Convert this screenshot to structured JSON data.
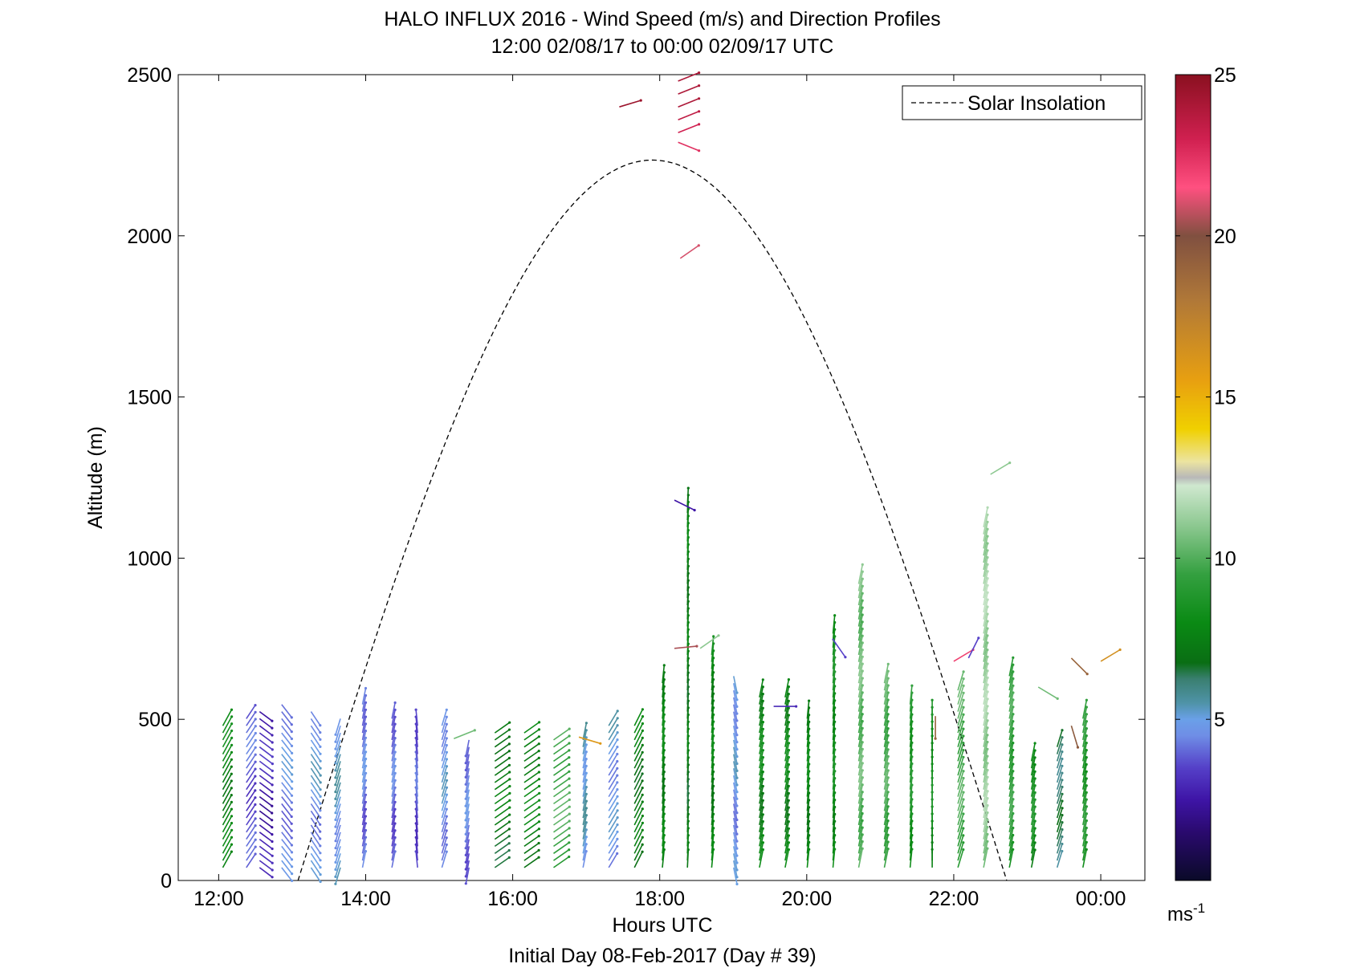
{
  "chart_data": {
    "type": "scatter",
    "title": "HALO INFLUX 2016 - Wind Speed (m/s) and Direction Profiles",
    "subtitle": "12:00 02/08/17 to 00:00 02/09/17  UTC",
    "xlabel": "Hours UTC",
    "footer": "Initial Day 08-Feb-2017 (Day # 39)",
    "ylabel": "Altitude (m)",
    "xlim": [
      11.45,
      24.6
    ],
    "ylim": [
      0,
      2500
    ],
    "xticks": [
      12,
      14,
      16,
      18,
      20,
      22,
      24
    ],
    "xtick_labels": [
      "12:00",
      "14:00",
      "16:00",
      "18:00",
      "20:00",
      "22:00",
      "00:00"
    ],
    "yticks": [
      0,
      500,
      1000,
      1500,
      2000,
      2500
    ],
    "ytick_labels": [
      "0",
      "500",
      "1000",
      "1500",
      "2000",
      "2500"
    ],
    "legend": {
      "label": "Solar Insolation",
      "position": "top-right",
      "style": "dashed"
    },
    "colorbar": {
      "min": 0,
      "max": 25,
      "ticks": [
        5,
        10,
        15,
        20,
        25
      ],
      "tick_labels": [
        "5",
        "10",
        "15",
        "20",
        "25"
      ],
      "unit_label": "ms",
      "unit_exponent": "-1"
    },
    "solar_insolation": {
      "start_hour": 13.08,
      "peak_hour": 17.9,
      "end_hour": 22.72,
      "peak_altitude": 2235
    },
    "profiles": [
      {
        "hour": 12.1,
        "base_speed": 7.5,
        "dir_dx": 0.55,
        "dir_dy": 1.0,
        "top": 500
      },
      {
        "hour": 12.42,
        "base_speed": 3.5,
        "dir_dx": 0.6,
        "dir_dy": 0.9,
        "top": 520
      },
      {
        "hour": 12.6,
        "base_speed": 2.5,
        "dir_dx": 0.8,
        "dir_dy": -0.6,
        "top": 540
      },
      {
        "hour": 12.9,
        "base_speed": 4.2,
        "dir_dx": 0.7,
        "dir_dy": -0.9,
        "top": 550
      },
      {
        "hour": 13.3,
        "base_speed": 4.5,
        "dir_dx": 0.6,
        "dir_dy": -0.9,
        "top": 540
      },
      {
        "hour": 13.7,
        "base_speed": 4.8,
        "dir_dx": -0.3,
        "dir_dy": -1.0,
        "top": 520
      },
      {
        "hour": 14.0,
        "base_speed": 4.0,
        "dir_dx": 0.2,
        "dir_dy": 1.0,
        "top": 550
      },
      {
        "hour": 14.4,
        "base_speed": 3.8,
        "dir_dx": 0.2,
        "dir_dy": 1.0,
        "top": 520
      },
      {
        "hour": 14.75,
        "base_speed": 3.5,
        "dir_dx": -0.1,
        "dir_dy": 1.0,
        "top": 480
      },
      {
        "hour": 15.08,
        "base_speed": 4.5,
        "dir_dx": 0.3,
        "dir_dy": 1.0,
        "top": 490
      },
      {
        "hour": 15.45,
        "base_speed": 4.0,
        "dir_dx": -0.2,
        "dir_dy": -1.0,
        "top": 440
      },
      {
        "hour": 15.8,
        "base_speed": 7.0,
        "dir_dx": 1.0,
        "dir_dy": 0.7,
        "top": 460
      },
      {
        "hour": 16.2,
        "base_speed": 7.5,
        "dir_dx": 1.0,
        "dir_dy": 0.7,
        "top": 460
      },
      {
        "hour": 16.6,
        "base_speed": 9.5,
        "dir_dx": 1.0,
        "dir_dy": 0.7,
        "top": 440
      },
      {
        "hour": 17.0,
        "base_speed": 5.0,
        "dir_dx": 0.2,
        "dir_dy": 1.0,
        "top": 440
      },
      {
        "hour": 17.35,
        "base_speed": 4.5,
        "dir_dx": 0.6,
        "dir_dy": 1.0,
        "top": 490
      },
      {
        "hour": 17.7,
        "base_speed": 7.0,
        "dir_dx": 0.5,
        "dir_dy": 1.0,
        "top": 480
      },
      {
        "hour": 18.08,
        "base_speed": 7.5,
        "dir_dx": 0.1,
        "dir_dy": 1.0,
        "top": 620
      },
      {
        "hour": 18.42,
        "base_speed": 7.0,
        "dir_dx": 0.05,
        "dir_dy": 1.0,
        "top": 1170
      },
      {
        "hour": 18.75,
        "base_speed": 7.5,
        "dir_dx": 0.1,
        "dir_dy": 1.0,
        "top": 720
      },
      {
        "hour": 19.05,
        "base_speed": 4.5,
        "dir_dx": 0.2,
        "dir_dy": -1.0,
        "top": 650
      },
      {
        "hour": 19.4,
        "base_speed": 7.5,
        "dir_dx": 0.2,
        "dir_dy": 1.0,
        "top": 570
      },
      {
        "hour": 19.75,
        "base_speed": 7.5,
        "dir_dx": 0.2,
        "dir_dy": 1.0,
        "top": 570
      },
      {
        "hour": 20.05,
        "base_speed": 7.5,
        "dir_dx": 0.1,
        "dir_dy": 1.0,
        "top": 520
      },
      {
        "hour": 20.4,
        "base_speed": 8.0,
        "dir_dx": 0.1,
        "dir_dy": 1.0,
        "top": 780
      },
      {
        "hour": 20.75,
        "base_speed": 10.0,
        "dir_dx": 0.2,
        "dir_dy": 1.0,
        "top": 940
      },
      {
        "hour": 21.1,
        "base_speed": 9.5,
        "dir_dx": 0.2,
        "dir_dy": 1.0,
        "top": 620
      },
      {
        "hour": 21.45,
        "base_speed": 8.5,
        "dir_dx": 0.1,
        "dir_dy": 1.0,
        "top": 560
      },
      {
        "hour": 21.75,
        "base_speed": 8.0,
        "dir_dx": 0.0,
        "dir_dy": 1.0,
        "top": 520
      },
      {
        "hour": 22.1,
        "base_speed": 9.5,
        "dir_dx": 0.3,
        "dir_dy": 1.0,
        "top": 600
      },
      {
        "hour": 22.45,
        "base_speed": 11.0,
        "dir_dx": 0.2,
        "dir_dy": 1.0,
        "top": 1100
      },
      {
        "hour": 22.8,
        "base_speed": 9.0,
        "dir_dx": 0.2,
        "dir_dy": 1.0,
        "top": 640
      },
      {
        "hour": 23.1,
        "base_speed": 8.0,
        "dir_dx": 0.2,
        "dir_dy": 1.0,
        "top": 380
      },
      {
        "hour": 23.45,
        "base_speed": 6.0,
        "dir_dx": 0.3,
        "dir_dy": 1.0,
        "top": 420
      },
      {
        "hour": 23.8,
        "base_speed": 8.5,
        "dir_dx": 0.2,
        "dir_dy": 1.0,
        "top": 520
      }
    ],
    "isolated_vectors": [
      {
        "hour": 17.45,
        "alt": 2400,
        "speed": 24.5,
        "dir_dx": 1.0,
        "dir_dy": 0.3
      },
      {
        "hour": 18.25,
        "alt": 2480,
        "speed": 24.0,
        "dir_dx": 1.0,
        "dir_dy": 0.4
      },
      {
        "hour": 18.25,
        "alt": 2440,
        "speed": 24.0,
        "dir_dx": 1.0,
        "dir_dy": 0.4
      },
      {
        "hour": 18.25,
        "alt": 2400,
        "speed": 24.0,
        "dir_dx": 1.0,
        "dir_dy": 0.4
      },
      {
        "hour": 18.25,
        "alt": 2360,
        "speed": 23.5,
        "dir_dx": 1.0,
        "dir_dy": 0.4
      },
      {
        "hour": 18.25,
        "alt": 2320,
        "speed": 23.0,
        "dir_dx": 1.0,
        "dir_dy": 0.4
      },
      {
        "hour": 18.25,
        "alt": 2290,
        "speed": 22.5,
        "dir_dx": 1.0,
        "dir_dy": -0.4
      },
      {
        "hour": 18.28,
        "alt": 1930,
        "speed": 21.0,
        "dir_dx": 1.0,
        "dir_dy": 0.7
      },
      {
        "hour": 18.2,
        "alt": 720,
        "speed": 20.5,
        "dir_dx": 1.0,
        "dir_dy": 0.1
      },
      {
        "hour": 18.55,
        "alt": 720,
        "speed": 11.0,
        "dir_dx": 1.0,
        "dir_dy": 0.7
      },
      {
        "hour": 18.2,
        "alt": 1180,
        "speed": 2.5,
        "dir_dx": 1.0,
        "dir_dy": -0.5
      },
      {
        "hour": 19.55,
        "alt": 540,
        "speed": 3.0,
        "dir_dx": 1.0,
        "dir_dy": 0.0
      },
      {
        "hour": 20.35,
        "alt": 750,
        "speed": 3.5,
        "dir_dx": 0.7,
        "dir_dy": -1.0
      },
      {
        "hour": 15.2,
        "alt": 440,
        "speed": 10.5,
        "dir_dx": 1.0,
        "dir_dy": 0.4
      },
      {
        "hour": 16.9,
        "alt": 445,
        "speed": 16.0,
        "dir_dx": 1.0,
        "dir_dy": -0.3
      },
      {
        "hour": 22.0,
        "alt": 680,
        "speed": 22.0,
        "dir_dx": 1.0,
        "dir_dy": 0.6
      },
      {
        "hour": 22.2,
        "alt": 690,
        "speed": 3.5,
        "dir_dx": 0.5,
        "dir_dy": 1.0
      },
      {
        "hour": 22.5,
        "alt": 1260,
        "speed": 11.0,
        "dir_dx": 1.0,
        "dir_dy": 0.6
      },
      {
        "hour": 23.15,
        "alt": 600,
        "speed": 10.5,
        "dir_dx": 1.0,
        "dir_dy": -0.6
      },
      {
        "hour": 23.6,
        "alt": 690,
        "speed": 19.0,
        "dir_dx": 1.0,
        "dir_dy": -1.0
      },
      {
        "hour": 23.6,
        "alt": 480,
        "speed": 19.5,
        "dir_dx": 0.3,
        "dir_dy": -1.0
      },
      {
        "hour": 24.0,
        "alt": 680,
        "speed": 16.5,
        "dir_dx": 1.0,
        "dir_dy": 0.6
      },
      {
        "hour": 21.75,
        "alt": 510,
        "speed": 19.0,
        "dir_dx": 0.0,
        "dir_dy": -1.0
      }
    ]
  }
}
